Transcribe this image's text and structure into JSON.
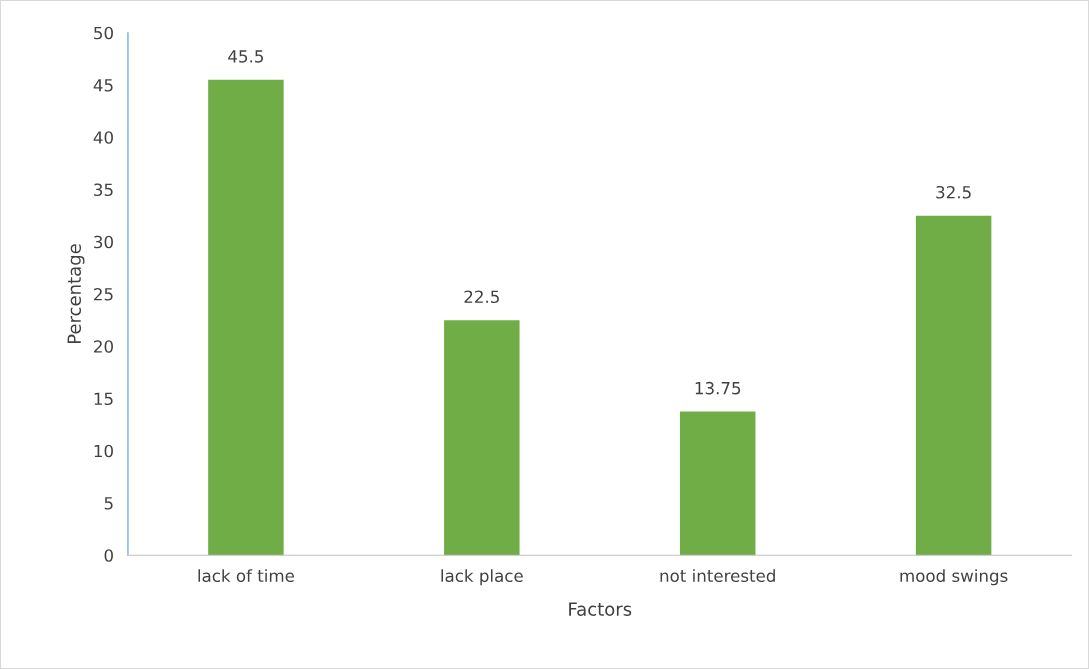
{
  "chart_data": {
    "type": "bar",
    "xlabel": "Factors",
    "ylabel": "Percentage",
    "categories": [
      "lack of time",
      "lack place",
      "not interested",
      "mood swings"
    ],
    "values": [
      45.5,
      22.5,
      13.75,
      32.5
    ],
    "color": "#70ad47",
    "ylim": [
      0,
      50
    ],
    "yticks": [
      0,
      5,
      10,
      15,
      20,
      25,
      30,
      35,
      40,
      45,
      50
    ],
    "data_labels": true,
    "grid": false,
    "legend": false
  }
}
